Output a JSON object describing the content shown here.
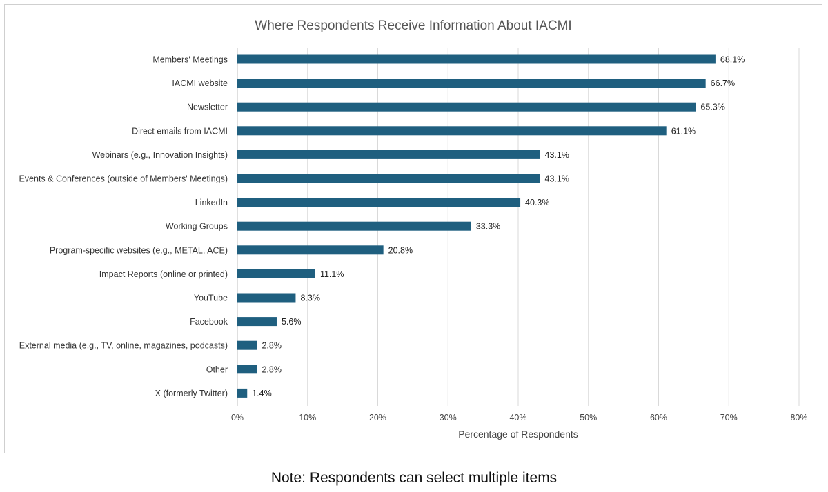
{
  "chart_data": {
    "type": "bar",
    "orientation": "horizontal",
    "title": "Where Respondents Receive Information About IACMI",
    "xlabel": "Percentage of Respondents",
    "ylabel": "",
    "xlim": [
      0,
      80
    ],
    "x_ticks": [
      "0%",
      "10%",
      "20%",
      "30%",
      "40%",
      "50%",
      "60%",
      "70%",
      "80%"
    ],
    "grid": "vertical",
    "bar_color": "#1f5f7f",
    "categories": [
      "Members' Meetings",
      "IACMI website",
      "Newsletter",
      "Direct emails from IACMI",
      "Webinars (e.g., Innovation Insights)",
      "Events & Conferences (outside of Members' Meetings)",
      "LinkedIn",
      "Working Groups",
      "Program-specific websites (e.g., METAL, ACE)",
      "Impact Reports (online or printed)",
      "YouTube",
      "Facebook",
      "External media (e.g., TV, online, magazines, podcasts)",
      "Other",
      "X (formerly Twitter)"
    ],
    "values": [
      68.1,
      66.7,
      65.3,
      61.1,
      43.1,
      43.1,
      40.3,
      33.3,
      20.8,
      11.1,
      8.3,
      5.6,
      2.8,
      2.8,
      1.4
    ],
    "data_labels": [
      "68.1%",
      "66.7%",
      "65.3%",
      "61.1%",
      "43.1%",
      "43.1%",
      "40.3%",
      "33.3%",
      "20.8%",
      "11.1%",
      "8.3%",
      "5.6%",
      "2.8%",
      "2.8%",
      "1.4%"
    ]
  },
  "note": "Note: Respondents can select multiple items"
}
